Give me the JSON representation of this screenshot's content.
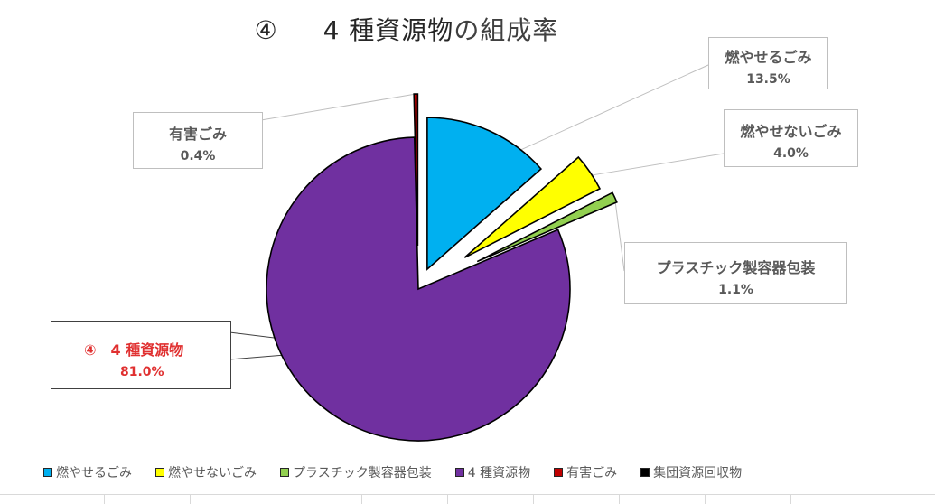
{
  "chart_data": {
    "type": "pie",
    "title_num": "④",
    "title_bold": "4 種資源物",
    "title_rest": "の組成率",
    "slices": [
      {
        "name": "燃やせるごみ",
        "value": 13.5,
        "label": "13.5%",
        "color": "#00B0F0"
      },
      {
        "name": "燃やせないごみ",
        "value": 4.0,
        "label": "4.0%",
        "color": "#FFFF00"
      },
      {
        "name": "プラスチック製容器包装",
        "value": 1.1,
        "label": "1.1%",
        "color": "#92D050"
      },
      {
        "name": "4 種資源物",
        "value": 81.0,
        "label": "81.0%",
        "color": "#7030A0"
      },
      {
        "name": "有害ごみ",
        "value": 0.4,
        "label": "0.4%",
        "color": "#C00000"
      },
      {
        "name": "集団資源回収物",
        "value": 0.0,
        "label": "",
        "color": "#000000"
      }
    ],
    "callout_81_name": "④　4 種資源物",
    "legend": [
      "燃やせるごみ",
      "燃やせないごみ",
      "プラスチック製容器包装",
      "4 種資源物",
      "有害ごみ",
      "集団資源回収物"
    ],
    "legend_placement": "bottom"
  }
}
